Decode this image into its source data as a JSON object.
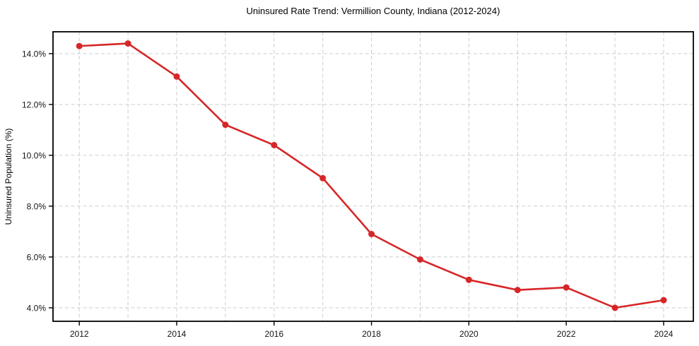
{
  "chart_data": {
    "type": "line",
    "title": "Uninsured Rate Trend: Vermillion County, Indiana (2012-2024)",
    "xlabel": "",
    "ylabel": "Uninsured Population (%)",
    "x": [
      2012,
      2013,
      2014,
      2015,
      2016,
      2017,
      2018,
      2019,
      2020,
      2021,
      2022,
      2023,
      2024
    ],
    "values": [
      14.3,
      14.4,
      13.1,
      11.2,
      10.4,
      9.1,
      6.9,
      5.9,
      5.1,
      4.7,
      4.8,
      4.0,
      4.3
    ],
    "xticks": [
      2012,
      2014,
      2016,
      2018,
      2020,
      2022,
      2024
    ],
    "xtick_labels": [
      "2012",
      "2014",
      "2016",
      "2018",
      "2020",
      "2022",
      "2024"
    ],
    "yticks": [
      4,
      6,
      8,
      10,
      12,
      14
    ],
    "ytick_labels": [
      "4.0%",
      "6.0%",
      "8.0%",
      "10.0%",
      "12.0%",
      "14.0%"
    ],
    "xlim": [
      2011.46,
      2024.61
    ],
    "ylim": [
      3.47,
      14.86
    ],
    "grid": true,
    "legend_position": "none",
    "marker": "circle",
    "colors": {
      "line": "#d62728",
      "marker": "#d62728",
      "grid": "#cccccc",
      "spine": "#000000",
      "tick": "#000000",
      "background": "#ffffff"
    }
  }
}
